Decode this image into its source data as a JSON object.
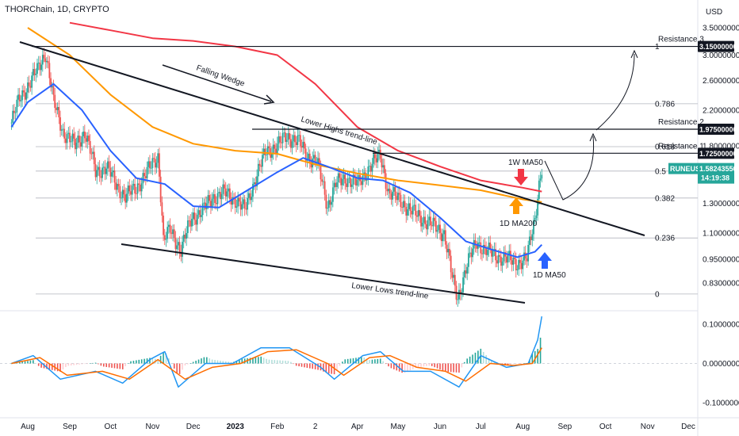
{
  "header": {
    "title": "THORChain, 1D, CRYPTO",
    "currency": "USD"
  },
  "chart_data": {
    "type": "line",
    "symbol": "RUNEUSD",
    "last_price": "1.58243550",
    "countdown": "14:19:38",
    "price_scale": "log",
    "x_ticks": [
      "Aug",
      "Sep",
      "Oct",
      "Nov",
      "Dec",
      "2023",
      "Feb",
      "2",
      "Apr",
      "May",
      "Jun",
      "Jul",
      "Aug",
      "Sep",
      "Oct",
      "Nov",
      "Dec"
    ],
    "y_ticks_price": [
      "3.50000000",
      "3.00000000",
      "2.60000000",
      "2.20000000",
      "1.80000000",
      "1.30000000",
      "1.10000000",
      "0.95000000",
      "0.83000000"
    ],
    "price_tags": [
      {
        "value": "3.15000000",
        "label": "Resistance 3"
      },
      {
        "value": "1.97500000",
        "label": "Resistance 2"
      },
      {
        "value": "1.72500000",
        "label": "Resistance 1"
      }
    ],
    "fib_levels": [
      {
        "label": "1",
        "value": 3.15
      },
      {
        "label": "0.786",
        "value": 2.28
      },
      {
        "label": "0.618",
        "value": 1.79
      },
      {
        "label": "0.5",
        "value": 1.56
      },
      {
        "label": "0.382",
        "value": 1.34
      },
      {
        "label": "0.236",
        "value": 1.07
      },
      {
        "label": "0",
        "value": 0.78
      }
    ],
    "annotations": {
      "falling_wedge": "Falling Wedge",
      "lower_highs": "Lower Highs trend-line",
      "lower_lows": "Lower Lows trend-line",
      "ma_1w50": "1W MA50",
      "ma_1d200": "1D MA200",
      "ma_1d50": "1D MA50"
    },
    "y_ticks_macd": [
      "0.10000000",
      "0.00000000",
      "-0.10000000"
    ],
    "series_price": [
      [
        "2022-07-20",
        2.05
      ],
      [
        "2022-07-26",
        2.35
      ],
      [
        "2022-08-02",
        2.55
      ],
      [
        "2022-08-08",
        2.75
      ],
      [
        "2022-08-14",
        3.05
      ],
      [
        "2022-08-20",
        2.3
      ],
      [
        "2022-08-27",
        1.95
      ],
      [
        "2022-09-05",
        1.8
      ],
      [
        "2022-09-12",
        1.95
      ],
      [
        "2022-09-20",
        1.55
      ],
      [
        "2022-09-28",
        1.6
      ],
      [
        "2022-10-05",
        1.45
      ],
      [
        "2022-10-12",
        1.35
      ],
      [
        "2022-10-20",
        1.42
      ],
      [
        "2022-10-28",
        1.55
      ],
      [
        "2022-11-05",
        1.7
      ],
      [
        "2022-11-09",
        1.05
      ],
      [
        "2022-11-14",
        1.12
      ],
      [
        "2022-11-22",
        1.0
      ],
      [
        "2022-11-30",
        1.2
      ],
      [
        "2022-12-08",
        1.25
      ],
      [
        "2022-12-16",
        1.35
      ],
      [
        "2022-12-24",
        1.38
      ],
      [
        "2023-01-01",
        1.33
      ],
      [
        "2023-01-08",
        1.25
      ],
      [
        "2023-01-16",
        1.5
      ],
      [
        "2023-01-24",
        1.75
      ],
      [
        "2023-02-01",
        1.8
      ],
      [
        "2023-02-08",
        1.9
      ],
      [
        "2023-02-16",
        1.85
      ],
      [
        "2023-02-23",
        1.7
      ],
      [
        "2023-03-02",
        1.65
      ],
      [
        "2023-03-10",
        1.28
      ],
      [
        "2023-03-16",
        1.45
      ],
      [
        "2023-03-24",
        1.5
      ],
      [
        "2023-04-02",
        1.45
      ],
      [
        "2023-04-10",
        1.6
      ],
      [
        "2023-04-18",
        1.7
      ],
      [
        "2023-04-24",
        1.38
      ],
      [
        "2023-05-02",
        1.33
      ],
      [
        "2023-05-10",
        1.25
      ],
      [
        "2023-05-18",
        1.2
      ],
      [
        "2023-05-26",
        1.15
      ],
      [
        "2023-06-04",
        1.1
      ],
      [
        "2023-06-10",
        0.85
      ],
      [
        "2023-06-14",
        0.76
      ],
      [
        "2023-06-20",
        0.9
      ],
      [
        "2023-06-28",
        1.05
      ],
      [
        "2023-07-04",
        1.0
      ],
      [
        "2023-07-12",
        0.97
      ],
      [
        "2023-07-20",
        0.95
      ],
      [
        "2023-07-28",
        0.93
      ],
      [
        "2023-08-04",
        0.95
      ],
      [
        "2023-08-10",
        1.2
      ],
      [
        "2023-08-13",
        1.45
      ],
      [
        "2023-08-15",
        1.58
      ]
    ],
    "series_1d_ma50": [
      [
        "2022-07-20",
        2.0
      ],
      [
        "2022-08-01",
        2.3
      ],
      [
        "2022-08-20",
        2.55
      ],
      [
        "2022-09-10",
        2.2
      ],
      [
        "2022-10-01",
        1.75
      ],
      [
        "2022-10-20",
        1.5
      ],
      [
        "2022-11-10",
        1.45
      ],
      [
        "2022-12-01",
        1.28
      ],
      [
        "2022-12-20",
        1.27
      ],
      [
        "2023-01-10",
        1.4
      ],
      [
        "2023-02-01",
        1.55
      ],
      [
        "2023-02-20",
        1.68
      ],
      [
        "2023-03-10",
        1.6
      ],
      [
        "2023-04-01",
        1.5
      ],
      [
        "2023-04-20",
        1.48
      ],
      [
        "2023-05-10",
        1.38
      ],
      [
        "2023-06-01",
        1.2
      ],
      [
        "2023-06-20",
        1.05
      ],
      [
        "2023-07-10",
        1.0
      ],
      [
        "2023-07-28",
        0.96
      ],
      [
        "2023-08-10",
        0.99
      ],
      [
        "2023-08-15",
        1.03
      ]
    ],
    "series_1d_ma200": [
      [
        "2022-08-01",
        3.5
      ],
      [
        "2022-09-01",
        3.0
      ],
      [
        "2022-10-01",
        2.4
      ],
      [
        "2022-11-01",
        2.0
      ],
      [
        "2022-12-01",
        1.82
      ],
      [
        "2023-01-01",
        1.75
      ],
      [
        "2023-02-01",
        1.72
      ],
      [
        "2023-03-01",
        1.62
      ],
      [
        "2023-04-01",
        1.54
      ],
      [
        "2023-05-01",
        1.48
      ],
      [
        "2023-06-01",
        1.44
      ],
      [
        "2023-07-01",
        1.4
      ],
      [
        "2023-08-01",
        1.33
      ],
      [
        "2023-08-15",
        1.31
      ]
    ],
    "series_1w_ma50": [
      [
        "2022-09-01",
        3.6
      ],
      [
        "2022-10-01",
        3.45
      ],
      [
        "2022-11-01",
        3.3
      ],
      [
        "2022-12-01",
        3.25
      ],
      [
        "2023-01-01",
        3.15
      ],
      [
        "2023-02-01",
        3.0
      ],
      [
        "2023-03-01",
        2.55
      ],
      [
        "2023-04-01",
        2.0
      ],
      [
        "2023-05-01",
        1.75
      ],
      [
        "2023-06-01",
        1.6
      ],
      [
        "2023-07-01",
        1.48
      ],
      [
        "2023-08-01",
        1.42
      ],
      [
        "2023-08-15",
        1.39
      ]
    ],
    "series_macd": [
      [
        "2022-07-20",
        0.0
      ],
      [
        "2022-08-05",
        0.02
      ],
      [
        "2022-08-25",
        -0.04
      ],
      [
        "2022-09-20",
        -0.02
      ],
      [
        "2022-10-10",
        -0.05
      ],
      [
        "2022-10-30",
        0.01
      ],
      [
        "2022-11-10",
        0.03
      ],
      [
        "2022-11-20",
        -0.06
      ],
      [
        "2022-12-10",
        0.0
      ],
      [
        "2022-12-30",
        0.0
      ],
      [
        "2023-01-20",
        0.04
      ],
      [
        "2023-02-10",
        0.04
      ],
      [
        "2023-03-05",
        -0.01
      ],
      [
        "2023-03-15",
        -0.04
      ],
      [
        "2023-04-05",
        0.02
      ],
      [
        "2023-04-18",
        0.03
      ],
      [
        "2023-05-05",
        -0.02
      ],
      [
        "2023-05-25",
        -0.02
      ],
      [
        "2023-06-15",
        -0.06
      ],
      [
        "2023-07-01",
        0.02
      ],
      [
        "2023-07-20",
        -0.01
      ],
      [
        "2023-08-05",
        0.0
      ],
      [
        "2023-08-12",
        0.06
      ],
      [
        "2023-08-15",
        0.12
      ]
    ],
    "series_signal": [
      [
        "2022-07-20",
        0.0
      ],
      [
        "2022-08-10",
        0.015
      ],
      [
        "2022-08-30",
        -0.03
      ],
      [
        "2022-09-25",
        -0.02
      ],
      [
        "2022-10-15",
        -0.04
      ],
      [
        "2022-11-05",
        0.01
      ],
      [
        "2022-11-25",
        -0.04
      ],
      [
        "2022-12-15",
        -0.01
      ],
      [
        "2023-01-05",
        0.0
      ],
      [
        "2023-01-25",
        0.03
      ],
      [
        "2023-02-15",
        0.035
      ],
      [
        "2023-03-10",
        0.0
      ],
      [
        "2023-03-22",
        -0.03
      ],
      [
        "2023-04-10",
        0.015
      ],
      [
        "2023-04-25",
        0.02
      ],
      [
        "2023-05-15",
        -0.01
      ],
      [
        "2023-06-05",
        -0.02
      ],
      [
        "2023-06-20",
        -0.045
      ],
      [
        "2023-07-08",
        0.0
      ],
      [
        "2023-07-25",
        -0.005
      ],
      [
        "2023-08-08",
        0.0
      ],
      [
        "2023-08-15",
        0.04
      ]
    ],
    "colors": {
      "candle_up": "#26a69a",
      "candle_down": "#ef5350",
      "ma50_1d": "#2962ff",
      "ma200_1d": "#ff9800",
      "ma50_1w": "#f23645",
      "macd": "#2196f3",
      "signal": "#ff6d00",
      "arrow_red": "#f23645",
      "arrow_orange": "#ff9800",
      "arrow_blue": "#2962ff",
      "symbol_tag": "#26a69a"
    }
  }
}
